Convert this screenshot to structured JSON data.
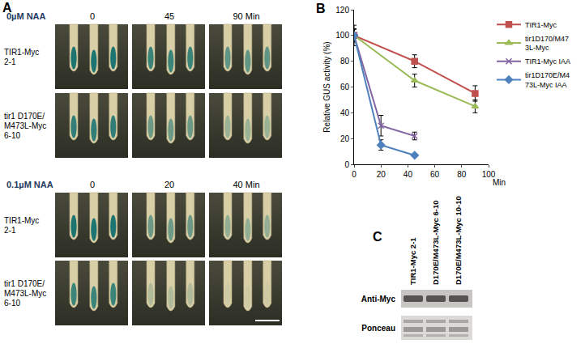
{
  "panel_a": {
    "label": "A",
    "blocks": [
      {
        "treatment": "0µM NAA",
        "times": [
          "0",
          "45",
          "90 Min"
        ],
        "rows": [
          "TIR1-Myc\n2-1",
          "tir1 D170E/\nM473L-Myc\n6-10"
        ]
      },
      {
        "treatment": "0.1µM NAA",
        "times": [
          "0",
          "20",
          "40 Min"
        ],
        "rows": [
          "TIR1-Myc\n2-1",
          "tir1 D170E/\nM473L-Myc\n6-10"
        ]
      }
    ]
  },
  "panel_b": {
    "label": "B"
  },
  "chart_data": {
    "type": "line",
    "x_label": "Min",
    "y_label": "Relative GUS activity (%)",
    "xlim": [
      0,
      100
    ],
    "xticks": [
      0,
      20,
      40,
      60,
      80,
      100
    ],
    "ylim": [
      0,
      120
    ],
    "yticks": [
      0,
      20,
      40,
      60,
      80,
      100,
      120
    ],
    "grid": false,
    "legend": "right",
    "series": [
      {
        "name": "TIR1-Myc",
        "color": "#c0504d",
        "marker": "square",
        "x": [
          0,
          45,
          90
        ],
        "values": [
          100,
          80,
          55
        ],
        "errors": [
          8,
          5,
          6
        ]
      },
      {
        "name": "tir1D170/M47\n3L-Myc",
        "color": "#9bbb59",
        "marker": "triangle-up",
        "x": [
          0,
          45,
          90
        ],
        "values": [
          100,
          65,
          45
        ],
        "errors": [
          5,
          5,
          5
        ]
      },
      {
        "name": "TIR1-Myc IAA",
        "color": "#8064a2",
        "marker": "x",
        "x": [
          0,
          20,
          45
        ],
        "values": [
          100,
          30,
          22
        ],
        "errors": [
          5,
          8,
          3
        ]
      },
      {
        "name": "tir1D170E/M4\n73L-Myc IAA",
        "color": "#4f81bd",
        "marker": "diamond",
        "x": [
          0,
          20,
          45
        ],
        "values": [
          100,
          15,
          7
        ],
        "errors": [
          5,
          4,
          1
        ]
      }
    ]
  },
  "panel_c": {
    "label": "C",
    "lanes": [
      "TIR1-Myc 2-1",
      "D170E/M473L-Myc 6-10",
      "D170E/M473L-Myc 10-10"
    ],
    "rows": [
      "Anti-Myc",
      "Ponceau"
    ]
  }
}
